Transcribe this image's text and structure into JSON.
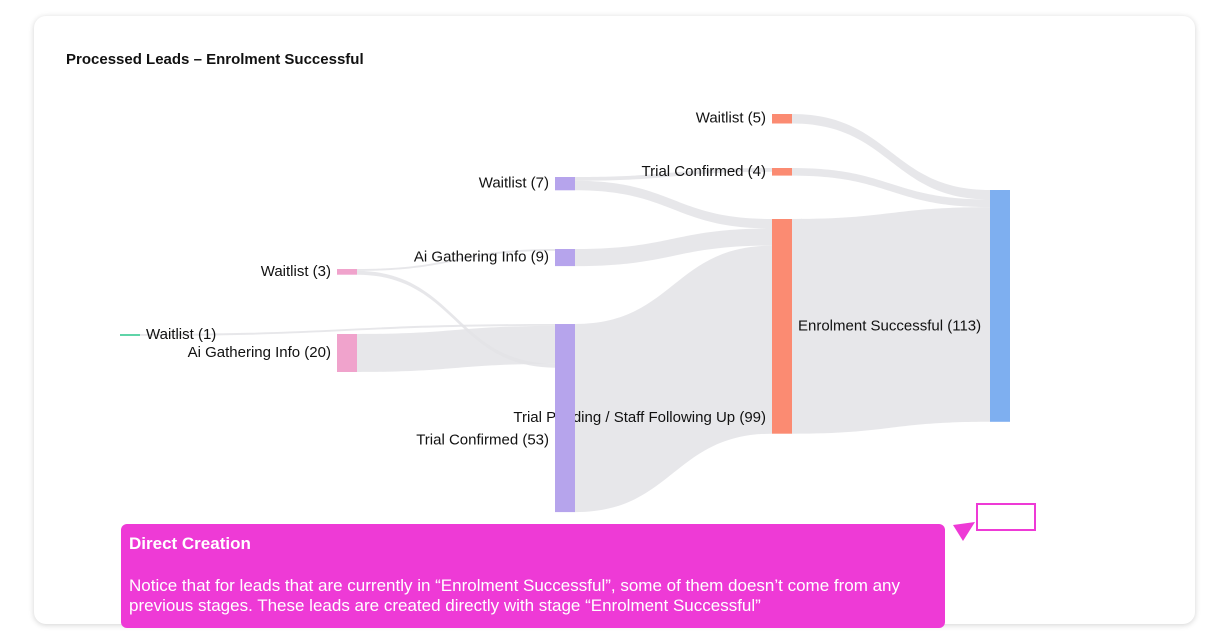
{
  "chart_data": {
    "type": "sankey",
    "title": "Processed Leads – Enrolment Successful",
    "nodes": [
      {
        "label": "Waitlist (1)",
        "value": 1,
        "color": "#5fd4a8"
      },
      {
        "label": "Ai Gathering Info (20)",
        "value": 20,
        "color": "#f0a3cc"
      },
      {
        "label": "Waitlist (3)",
        "value": 3,
        "color": "#f0a3cc"
      },
      {
        "label": "Waitlist (7)",
        "value": 7,
        "color": "#b6a4ec"
      },
      {
        "label": "Ai Gathering Info (9)",
        "value": 9,
        "color": "#b6a4ec"
      },
      {
        "label": "Trial Pending / Staff Following Up (99)",
        "value": 99,
        "color": "#b6a4ec"
      },
      {
        "label": "Trial Confirmed (53)",
        "value": 53,
        "color": "#b6a4ec"
      },
      {
        "label": "Waitlist (5)",
        "value": 5,
        "color": "#fb8b72"
      },
      {
        "label": "Trial Confirmed (4)",
        "value": 4,
        "color": "#fb8b72"
      },
      {
        "label": "Enrolment Successful (113)",
        "value": 113,
        "color": "#fb8b72"
      },
      {
        "value": 122,
        "color": "#7eaff0"
      }
    ],
    "links": [
      {
        "source": 0,
        "target": 5,
        "value": 1
      },
      {
        "source": 1,
        "target": 5,
        "value": 20
      },
      {
        "source": 2,
        "target": 4,
        "value": 1
      },
      {
        "source": 2,
        "target": 5,
        "value": 2
      },
      {
        "source": 3,
        "target": 8,
        "value": 2
      },
      {
        "source": 3,
        "target": 9,
        "value": 5
      },
      {
        "source": 4,
        "target": 9,
        "value": 9
      },
      {
        "source": 5,
        "target": 9,
        "value": 99
      },
      {
        "source": 7,
        "target": 10,
        "value": 5
      },
      {
        "source": 8,
        "target": 10,
        "value": 4
      },
      {
        "source": 9,
        "target": 10,
        "value": 113
      }
    ],
    "link_color": "#e3e3e6"
  },
  "annotation": {
    "title": "Direct Creation",
    "text": "Notice that for leads that are currently in “Enrolment Successful”, some of them doesn’t come from any previous stages. These leads are created directly with stage “Enrolment Successful”",
    "color": "#ee3ad6"
  }
}
